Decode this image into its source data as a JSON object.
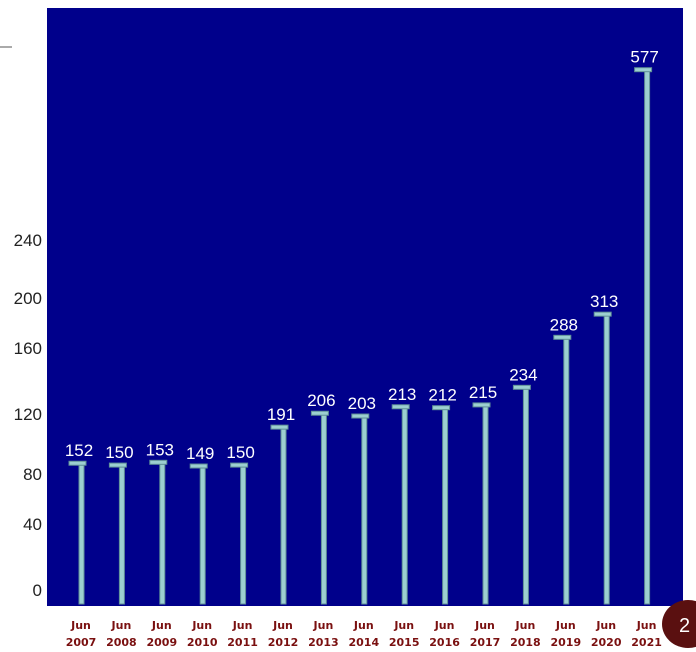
{
  "chart_data": {
    "type": "bar",
    "title": "",
    "xlabel": "",
    "ylabel": "",
    "categories": [
      "Jun 2007",
      "Jun 2008",
      "Jun 2009",
      "Jun 2010",
      "Jun 2011",
      "Jun 2012",
      "Jun 2013",
      "Jun 2014",
      "Jun 2015",
      "Jun 2016",
      "Jun 2017",
      "Jun 2018",
      "Jun 2019",
      "Jun 2020",
      "Jun 2021"
    ],
    "category_lines": [
      [
        "Jun",
        "2007"
      ],
      [
        "Jun",
        "2008"
      ],
      [
        "Jun",
        "2009"
      ],
      [
        "Jun",
        "2010"
      ],
      [
        "Jun",
        "2011"
      ],
      [
        "Jun",
        "2012"
      ],
      [
        "Jun",
        "2013"
      ],
      [
        "Jun",
        "2014"
      ],
      [
        "Jun",
        "2015"
      ],
      [
        "Jun",
        "2016"
      ],
      [
        "Jun",
        "2017"
      ],
      [
        "Jun",
        "2018"
      ],
      [
        "Jun",
        "2019"
      ],
      [
        "Jun",
        "2020"
      ],
      [
        "Jun",
        "2021"
      ]
    ],
    "values": [
      152,
      150,
      153,
      149,
      150,
      191,
      206,
      203,
      213,
      212,
      215,
      234,
      288,
      313,
      577
    ],
    "data_labels": [
      "152",
      "150",
      "153",
      "149",
      "150",
      "191",
      "206",
      "203",
      "213",
      "212",
      "215",
      "234",
      "288",
      "313",
      "577"
    ],
    "ytick_labels": [
      "0",
      "40",
      "80",
      "120",
      "160",
      "200",
      "240"
    ],
    "colors": {
      "plot_bg": "#00008b",
      "bar_fill": "#9ccfd0",
      "bar_edge": "#5f8f96",
      "axis_text": "#222222",
      "label_text": "#ffffff",
      "xlabel_text": "#7a1010",
      "badge": "#5a1010"
    },
    "legend": "none",
    "grid": false
  },
  "page_badge": "2"
}
